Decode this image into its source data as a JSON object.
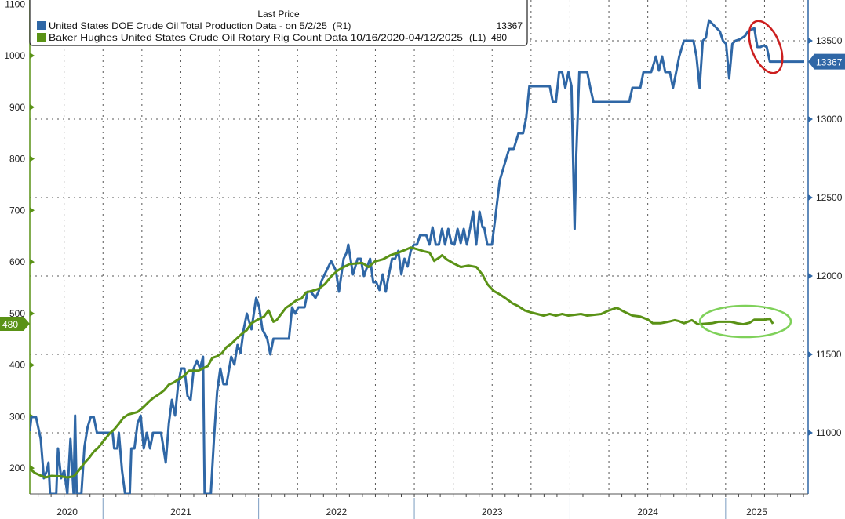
{
  "chart_data": {
    "type": "line",
    "title": "",
    "legend": {
      "header": "Last Price",
      "placement": "top-left",
      "entries": [
        {
          "label": "United States DOE Crude Oil Total Production Data -  on 5/2/25",
          "axis_tag": "(R1)",
          "last_value": "13367",
          "color": "#2f67a6"
        },
        {
          "label": "Baker Hughes United States Crude Oil Rotary Rig Count Data 10/16/2020-04/12/2025",
          "axis_tag": "(L1)",
          "last_value": "480",
          "color": "#5a9216"
        }
      ]
    },
    "x_range": [
      2020.53,
      2025.53
    ],
    "x_year_labels": [
      {
        "label": "2020",
        "center": 2020.77
      },
      {
        "label": "2021",
        "center": 2021.5
      },
      {
        "label": "2022",
        "center": 2022.5
      },
      {
        "label": "2023",
        "center": 2023.5
      },
      {
        "label": "2024",
        "center": 2024.5
      },
      {
        "label": "2025",
        "center": 2025.2
      }
    ],
    "left_axis": {
      "ylim": [
        150,
        1108
      ],
      "ticks": [
        200,
        300,
        400,
        500,
        600,
        700,
        800,
        900,
        1000,
        1100
      ],
      "color": "#5a9216",
      "last_value_tag": "480"
    },
    "right_axis": {
      "ylim": [
        10610,
        13760
      ],
      "ticks": [
        11000,
        11500,
        12000,
        12500,
        13000,
        13500
      ],
      "color": "#2f67a6",
      "last_value_tag": "13367"
    },
    "grid": true,
    "series": [
      {
        "name": "United States DOE Crude Oil Total Production",
        "axis": "right",
        "color": "#2f67a6",
        "x": [
          2020.53,
          2020.54,
          2020.57,
          2020.6,
          2020.62,
          2020.64,
          2020.65,
          2020.66,
          2020.7,
          2020.711,
          2020.731,
          2020.751,
          2020.771,
          2020.791,
          2020.811,
          2020.821,
          2020.831,
          2020.861,
          2020.881,
          2020.901,
          2020.921,
          2020.941,
          2020.961,
          2021.042,
          2021.062,
          2021.072,
          2021.092,
          2021.102,
          2021.122,
          2021.142,
          2021.172,
          2021.182,
          2021.202,
          2021.222,
          2021.242,
          2021.262,
          2021.282,
          2021.302,
          2021.322,
          2021.373,
          2021.403,
          2021.423,
          2021.443,
          2021.463,
          2021.483,
          2021.503,
          2021.523,
          2021.543,
          2021.563,
          2021.583,
          2021.603,
          2021.623,
          2021.643,
          2021.653,
          2021.693,
          2021.713,
          2021.733,
          2021.754,
          2021.774,
          2021.794,
          2021.824,
          2021.844,
          2021.864,
          2021.884,
          2021.904,
          2021.924,
          2021.954,
          2021.984,
          2022.004,
          2022.024,
          2022.055,
          2022.075,
          2022.095,
          2022.195,
          2022.215,
          2022.235,
          2022.255,
          2022.295,
          2022.315,
          2022.335,
          2022.365,
          2022.385,
          2022.405,
          2022.436,
          2022.466,
          2022.496,
          2022.516,
          2022.546,
          2022.566,
          2022.576,
          2022.606,
          2022.636,
          2022.656,
          2022.676,
          2022.716,
          2022.736,
          2022.756,
          2022.776,
          2022.797,
          2022.817,
          2022.837,
          2022.857,
          2022.877,
          2022.897,
          2022.917,
          2022.937,
          2022.957,
          2022.977,
          2022.997,
          2023.017,
          2023.037,
          2023.077,
          2023.097,
          2023.117,
          2023.138,
          2023.158,
          2023.178,
          2023.198,
          2023.218,
          2023.238,
          2023.258,
          2023.278,
          2023.298,
          2023.318,
          2023.338,
          2023.358,
          2023.378,
          2023.398,
          2023.419,
          2023.439,
          2023.449,
          2023.469,
          2023.499,
          2023.519,
          2023.549,
          2023.579,
          2023.609,
          2023.639,
          2023.669,
          2023.699,
          2023.719,
          2023.739,
          2023.87,
          2023.89,
          2023.91,
          2023.93,
          2023.95,
          2023.97,
          2023.99,
          2024.01,
          2024.03,
          2024.04,
          2024.06,
          2024.111,
          2024.131,
          2024.151,
          2024.381,
          2024.401,
          2024.452,
          2024.472,
          2024.522,
          2024.552,
          2024.572,
          2024.592,
          2024.612,
          2024.642,
          2024.662,
          2024.682,
          2024.702,
          2024.732,
          2024.793,
          2024.813,
          2024.833,
          2024.853,
          2024.873,
          2024.893,
          2024.923,
          2024.943,
          2024.963,
          2024.983,
          2025.003,
          2025.023,
          2025.043,
          2025.063,
          2025.093,
          2025.124,
          2025.144,
          2025.184,
          2025.204,
          2025.224,
          2025.244,
          2025.264,
          2025.284,
          2025.304,
          2025.505
        ],
        "values": [
          11010,
          11100,
          11100,
          10960,
          10710,
          10760,
          10810,
          10610,
          10610,
          10900,
          10710,
          10760,
          10610,
          10960,
          10610,
          11110,
          10610,
          10610,
          10910,
          11035,
          11100,
          11100,
          11000,
          11000,
          11000,
          10900,
          10900,
          11000,
          10760,
          10610,
          10610,
          10900,
          10900,
          11060,
          11110,
          10900,
          11000,
          10900,
          11000,
          11000,
          10810,
          11060,
          11210,
          11110,
          11310,
          11410,
          11410,
          11235,
          11210,
          11410,
          11460,
          11410,
          11485,
          10610,
          10610,
          10960,
          11260,
          11410,
          11310,
          11310,
          11485,
          11435,
          11560,
          11510,
          11660,
          11760,
          11660,
          11860,
          11800,
          11660,
          11600,
          11500,
          11600,
          11600,
          11800,
          11760,
          11800,
          11800,
          11900,
          11900,
          11860,
          11900,
          11970,
          12035,
          12095,
          12035,
          11900,
          12110,
          12150,
          12200,
          12010,
          12110,
          12110,
          12000,
          12110,
          11960,
          11960,
          11910,
          12010,
          11900,
          12010,
          12110,
          12110,
          12160,
          12010,
          12110,
          12060,
          12160,
          12200,
          12200,
          12260,
          12260,
          12200,
          12310,
          12200,
          12200,
          12300,
          12200,
          12300,
          12210,
          12200,
          12300,
          12210,
          12300,
          12200,
          12300,
          12410,
          12200,
          12410,
          12310,
          12310,
          12200,
          12200,
          12360,
          12610,
          12710,
          12810,
          12810,
          12910,
          12910,
          13010,
          13210,
          13210,
          13110,
          13110,
          13300,
          13300,
          13200,
          13300,
          13210,
          12300,
          12760,
          13300,
          13300,
          13200,
          13110,
          13110,
          13200,
          13200,
          13300,
          13300,
          13400,
          13310,
          13400,
          13300,
          13300,
          13200,
          13300,
          13400,
          13500,
          13500,
          13400,
          13200,
          13500,
          13520,
          13630,
          13600,
          13580,
          13560,
          13500,
          13480,
          13260,
          13480,
          13500,
          13510,
          13530,
          13560,
          13580,
          13460,
          13460,
          13470,
          13460,
          13367,
          13367,
          13367
        ]
      },
      {
        "name": "Baker Hughes United States Crude Oil Rotary Rig Count",
        "axis": "left",
        "color": "#5a9216",
        "x": [
          2020.53,
          2020.56,
          2020.59,
          2020.63,
          2020.67,
          2020.731,
          2020.771,
          2020.811,
          2020.841,
          2020.881,
          2020.911,
          2020.941,
          2020.971,
          2021.002,
          2021.042,
          2021.072,
          2021.102,
          2021.132,
          2021.162,
          2021.222,
          2021.252,
          2021.292,
          2021.322,
          2021.363,
          2021.393,
          2021.423,
          2021.453,
          2021.483,
          2021.523,
          2021.553,
          2021.613,
          2021.653,
          2021.673,
          2021.703,
          2021.733,
          2021.764,
          2021.794,
          2021.824,
          2021.854,
          2021.894,
          2021.924,
          2021.954,
          2021.994,
          2022.034,
          2022.064,
          2022.095,
          2022.115,
          2022.145,
          2022.175,
          2022.205,
          2022.245,
          2022.275,
          2022.305,
          2022.345,
          2022.386,
          2022.426,
          2022.466,
          2022.506,
          2022.546,
          2022.586,
          2022.666,
          2022.706,
          2022.747,
          2022.797,
          2022.847,
          2022.897,
          2022.947,
          2022.977,
          2023.027,
          2023.057,
          2023.098,
          2023.128,
          2023.158,
          2023.178,
          2023.208,
          2023.248,
          2023.298,
          2023.348,
          2023.399,
          2023.439,
          2023.469,
          2023.509,
          2023.549,
          2023.589,
          2023.629,
          2023.669,
          2023.709,
          2023.75,
          2023.79,
          2023.83,
          2023.87,
          2023.91,
          2023.95,
          2023.99,
          2024.071,
          2024.111,
          2024.201,
          2024.251,
          2024.301,
          2024.351,
          2024.401,
          2024.452,
          2024.502,
          2024.532,
          2024.582,
          2024.632,
          2024.672,
          2024.702,
          2024.732,
          2024.783,
          2024.823,
          2024.913,
          2024.953,
          2025.033,
          2025.073,
          2025.113,
          2025.154,
          2025.184,
          2025.254,
          2025.284,
          2025.304
        ],
        "values": [
          199,
          191,
          187,
          182,
          185,
          184,
          182,
          184,
          194,
          210,
          220,
          232,
          240,
          252,
          267,
          275,
          286,
          298,
          304,
          309,
          316,
          328,
          336,
          344,
          351,
          362,
          366,
          372,
          380,
          389,
          389,
          395,
          398,
          414,
          417,
          423,
          435,
          441,
          450,
          461,
          468,
          481,
          488,
          494,
          506,
          484,
          487,
          499,
          511,
          517,
          526,
          529,
          541,
          544,
          548,
          557,
          572,
          583,
          590,
          596,
          598,
          590,
          601,
          605,
          613,
          618,
          624,
          628,
          624,
          621,
          618,
          602,
          608,
          613,
          605,
          598,
          590,
          593,
          590,
          575,
          557,
          544,
          537,
          529,
          520,
          514,
          506,
          502,
          499,
          496,
          499,
          496,
          499,
          496,
          499,
          496,
          499,
          506,
          511,
          503,
          496,
          494,
          488,
          481,
          481,
          484,
          487,
          485,
          481,
          487,
          479,
          481,
          484,
          484,
          481,
          479,
          482,
          488,
          488,
          490,
          480
        ]
      }
    ],
    "annotations": [
      {
        "shape": "ellipse",
        "color": "#cc1f1f",
        "around": "production drop 2025"
      },
      {
        "shape": "ellipse",
        "color": "#7fd15a",
        "around": "rig count flat 2024-2025"
      }
    ]
  }
}
